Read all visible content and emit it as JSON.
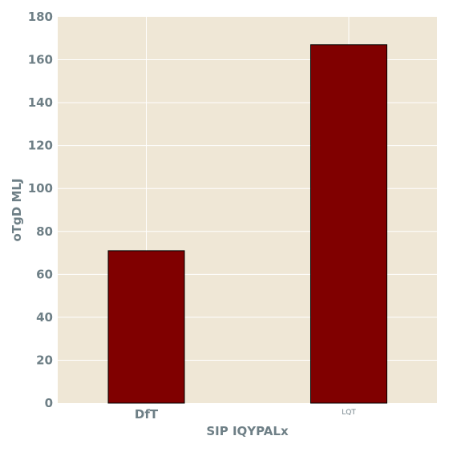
{
  "colors": {
    "plot_background": "#efe7d6",
    "grid": "#ffffff",
    "bar_fill": "#800000",
    "bar_stroke": "#000000",
    "text": "#6e7f86"
  },
  "chart_data": {
    "type": "bar",
    "categories": [
      "DfT",
      "LQT"
    ],
    "values": [
      71,
      167
    ],
    "xlabel": "SIP IQYPALx",
    "ylabel": "oTgD MLJ",
    "ylim": [
      0,
      180
    ],
    "yticks": [
      0,
      20,
      40,
      60,
      80,
      100,
      120,
      140,
      160,
      180
    ],
    "grid": true,
    "legend": "none"
  }
}
